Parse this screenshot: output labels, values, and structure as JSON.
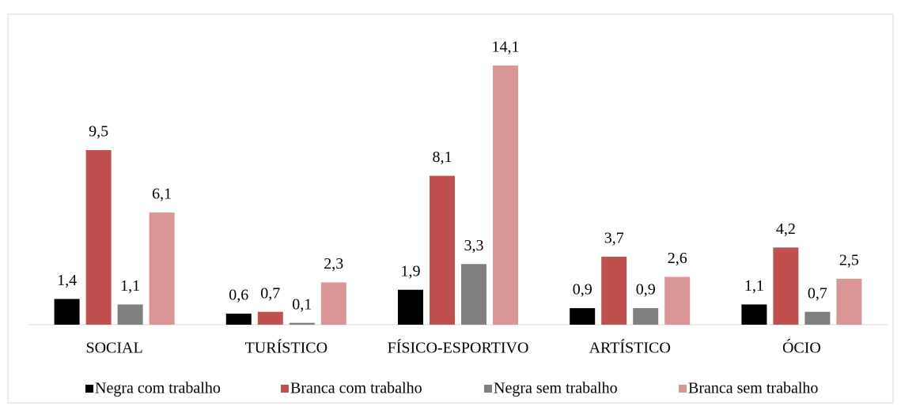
{
  "chart_data": {
    "type": "bar",
    "categories": [
      "SOCIAL",
      "TURÍSTICO",
      "FÍSICO-ESPORTIVO",
      "ARTÍSTICO",
      "ÓCIO"
    ],
    "series": [
      {
        "name": "Negra com trabalho",
        "color": "#000000",
        "values": [
          1.4,
          0.6,
          1.9,
          0.9,
          1.1
        ],
        "value_labels": [
          "1,4",
          "0,6",
          "1,9",
          "0,9",
          "1,1"
        ]
      },
      {
        "name": "Branca com trabalho",
        "color": "#c0504d",
        "values": [
          9.5,
          0.7,
          8.1,
          3.7,
          4.2
        ],
        "value_labels": [
          "9,5",
          "0,7",
          "8,1",
          "3,7",
          "4,2"
        ]
      },
      {
        "name": "Negra sem trabalho",
        "color": "#7f7f7f",
        "values": [
          1.1,
          0.1,
          3.3,
          0.9,
          0.7
        ],
        "value_labels": [
          "1,1",
          "0,1",
          "3,3",
          "0,9",
          "0,7"
        ]
      },
      {
        "name": "Branca sem trabalho",
        "color": "#d99694",
        "values": [
          6.1,
          2.3,
          14.1,
          2.6,
          2.5
        ],
        "value_labels": [
          "6,1",
          "2,3",
          "14,1",
          "2,6",
          "2,5"
        ]
      }
    ],
    "legend": "bottom"
  }
}
